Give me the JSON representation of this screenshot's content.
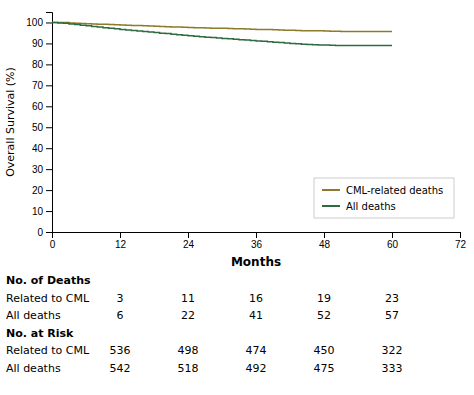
{
  "chart_data": {
    "type": "step",
    "xlabel": "Months",
    "ylabel": "Overall Survival (%)",
    "xlim": [
      0,
      72
    ],
    "ylim": [
      0,
      105
    ],
    "xticks": [
      0,
      12,
      24,
      36,
      48,
      60,
      72
    ],
    "yticks": [
      0,
      10,
      20,
      30,
      40,
      50,
      60,
      70,
      80,
      90,
      100
    ],
    "grid": false,
    "legend": "lower right",
    "x": [
      0,
      1,
      2,
      3,
      4,
      5,
      6,
      7,
      8,
      9,
      10,
      11,
      12,
      13,
      14,
      15,
      16,
      17,
      18,
      19,
      20,
      21,
      22,
      23,
      24,
      25,
      26,
      27,
      28,
      29,
      30,
      31,
      32,
      33,
      34,
      35,
      36,
      37,
      38,
      39,
      40,
      41,
      42,
      43,
      44,
      45,
      46,
      47,
      48,
      49,
      50,
      51,
      52,
      53,
      54,
      55,
      56,
      57,
      58,
      59,
      60
    ],
    "series": [
      {
        "name": "CML-related deaths",
        "color": "#8B7B2A",
        "values": [
          100,
          100,
          100,
          99.8,
          99.6,
          99.5,
          99.4,
          99.3,
          99.2,
          99.1,
          99.0,
          98.9,
          98.8,
          98.7,
          98.6,
          98.5,
          98.4,
          98.3,
          98.2,
          98.1,
          98.0,
          97.9,
          97.8,
          97.7,
          97.6,
          97.5,
          97.5,
          97.4,
          97.3,
          97.3,
          97.2,
          97.1,
          97.0,
          97.0,
          96.9,
          96.8,
          96.7,
          96.7,
          96.6,
          96.5,
          96.4,
          96.3,
          96.3,
          96.2,
          96.1,
          96.1,
          96.0,
          96.0,
          95.9,
          95.8,
          95.8,
          95.7,
          95.7,
          95.7,
          95.7,
          95.7,
          95.7,
          95.7,
          95.7,
          95.7,
          95.7
        ]
      },
      {
        "name": "All deaths",
        "color": "#2E6B3E",
        "values": [
          100,
          99.8,
          99.6,
          99.3,
          99.0,
          98.7,
          98.4,
          98.1,
          97.8,
          97.5,
          97.2,
          97.0,
          96.7,
          96.4,
          96.2,
          95.9,
          95.7,
          95.4,
          95.2,
          94.9,
          94.7,
          94.4,
          94.2,
          93.9,
          93.7,
          93.4,
          93.2,
          93.0,
          92.8,
          92.6,
          92.4,
          92.2,
          92.0,
          91.8,
          91.6,
          91.4,
          91.2,
          91.0,
          90.8,
          90.6,
          90.4,
          90.2,
          90.0,
          89.8,
          89.6,
          89.5,
          89.4,
          89.3,
          89.2,
          89.1,
          89.0,
          89.0,
          89.0,
          89.0,
          89.0,
          89.0,
          89.0,
          89.0,
          89.0,
          89.0,
          89.0
        ]
      }
    ],
    "table": {
      "x": [
        12,
        24,
        36,
        48,
        60
      ],
      "groups": [
        {
          "title": "No. of Deaths",
          "rows": [
            {
              "label": "Related to CML",
              "values": [
                3,
                11,
                16,
                19,
                23
              ]
            },
            {
              "label": "All deaths",
              "values": [
                6,
                22,
                41,
                52,
                57
              ]
            }
          ]
        },
        {
          "title": "No. at Risk",
          "rows": [
            {
              "label": "Related to CML",
              "values": [
                536,
                498,
                474,
                450,
                322
              ]
            },
            {
              "label": "All deaths",
              "values": [
                542,
                518,
                492,
                475,
                333
              ]
            }
          ]
        }
      ]
    }
  }
}
